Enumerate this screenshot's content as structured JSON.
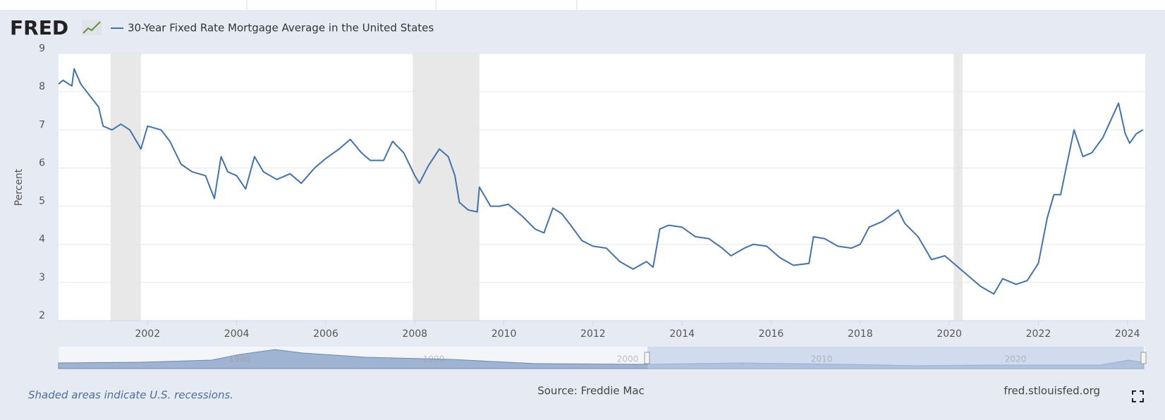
{
  "chart_data": {
    "type": "line",
    "logo": "FRED",
    "ylabel": "Percent",
    "note": "Shaded areas indicate U.S. recessions.",
    "source": "Source: Freddie Mac",
    "site": "fred.stlouisfed.org",
    "xlim": [
      2000.0,
      2024.4
    ],
    "xticks": [
      2002,
      2004,
      2006,
      2008,
      2010,
      2012,
      2014,
      2016,
      2018,
      2020,
      2022,
      2024
    ],
    "ylim": [
      2,
      9
    ],
    "yticks": [
      2,
      3,
      4,
      5,
      6,
      7,
      8,
      9
    ],
    "grid": true,
    "recessions": [
      [
        2001.17,
        2001.85
      ],
      [
        2007.95,
        2009.45
      ],
      [
        2020.1,
        2020.3
      ]
    ],
    "navigator_labels": [
      "1980",
      "1990",
      "2000",
      "2010",
      "2020"
    ],
    "x": [
      2000.0,
      2000.1,
      2000.3,
      2000.35,
      2000.5,
      2000.7,
      2000.9,
      2001.0,
      2001.2,
      2001.4,
      2001.6,
      2001.8,
      2001.85,
      2002.0,
      2002.3,
      2002.5,
      2002.75,
      2003.0,
      2003.3,
      2003.5,
      2003.65,
      2003.8,
      2004.0,
      2004.2,
      2004.4,
      2004.6,
      2004.9,
      2005.2,
      2005.45,
      2005.75,
      2006.0,
      2006.3,
      2006.55,
      2006.8,
      2007.0,
      2007.3,
      2007.5,
      2007.75,
      2008.0,
      2008.1,
      2008.3,
      2008.55,
      2008.75,
      2008.9,
      2009.0,
      2009.2,
      2009.4,
      2009.45,
      2009.7,
      2009.9,
      2010.1,
      2010.4,
      2010.7,
      2010.9,
      2011.1,
      2011.3,
      2011.5,
      2011.75,
      2012.0,
      2012.3,
      2012.6,
      2012.9,
      2013.2,
      2013.35,
      2013.5,
      2013.7,
      2014.0,
      2014.3,
      2014.6,
      2014.9,
      2015.1,
      2015.4,
      2015.6,
      2015.9,
      2016.2,
      2016.5,
      2016.85,
      2016.95,
      2017.2,
      2017.5,
      2017.8,
      2018.0,
      2018.2,
      2018.5,
      2018.85,
      2019.0,
      2019.3,
      2019.6,
      2019.9,
      2020.1,
      2020.4,
      2020.7,
      2021.0,
      2021.2,
      2021.5,
      2021.75,
      2022.0,
      2022.2,
      2022.35,
      2022.5,
      2022.8,
      2023.0,
      2023.2,
      2023.45,
      2023.8,
      2023.95,
      2024.05,
      2024.2,
      2024.35
    ],
    "series": [
      {
        "name": "30-Year Fixed Rate Mortgage Average in the United States",
        "color": "#4572a7",
        "values": [
          8.2,
          8.3,
          8.15,
          8.6,
          8.2,
          7.9,
          7.6,
          7.1,
          7.0,
          7.15,
          7.0,
          6.6,
          6.5,
          7.1,
          7.0,
          6.7,
          6.1,
          5.9,
          5.8,
          5.2,
          6.3,
          5.9,
          5.8,
          5.45,
          6.3,
          5.9,
          5.7,
          5.85,
          5.6,
          6.0,
          6.25,
          6.5,
          6.75,
          6.4,
          6.2,
          6.2,
          6.7,
          6.4,
          5.8,
          5.6,
          6.05,
          6.5,
          6.3,
          5.8,
          5.1,
          4.9,
          4.85,
          5.5,
          5.0,
          5.0,
          5.05,
          4.75,
          4.4,
          4.3,
          4.95,
          4.8,
          4.5,
          4.1,
          3.95,
          3.9,
          3.55,
          3.35,
          3.55,
          3.4,
          4.4,
          4.5,
          4.45,
          4.2,
          4.15,
          3.9,
          3.7,
          3.9,
          4.0,
          3.95,
          3.65,
          3.45,
          3.5,
          4.2,
          4.15,
          3.95,
          3.9,
          4.0,
          4.45,
          4.6,
          4.9,
          4.55,
          4.2,
          3.6,
          3.7,
          3.5,
          3.2,
          2.9,
          2.7,
          3.1,
          2.95,
          3.05,
          3.5,
          4.7,
          5.3,
          5.3,
          7.0,
          6.3,
          6.4,
          6.8,
          7.7,
          6.9,
          6.65,
          6.9,
          7.0
        ]
      }
    ]
  }
}
